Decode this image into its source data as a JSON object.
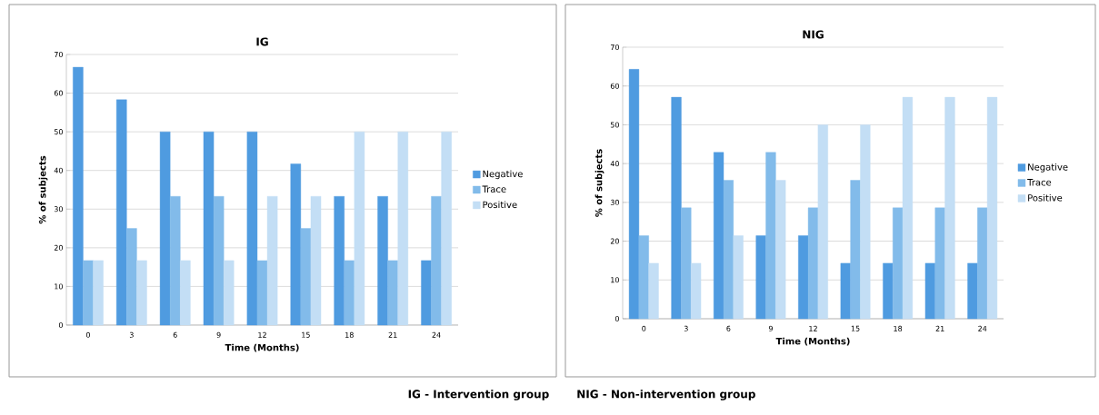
{
  "chart_data": [
    {
      "type": "bar",
      "title": "IG",
      "xlabel": "Time (Months)",
      "ylabel": "% of subjects",
      "categories": [
        "0",
        "3",
        "6",
        "9",
        "12",
        "15",
        "18",
        "21",
        "24"
      ],
      "series": [
        {
          "name": "Negative",
          "color": "#4f9be0",
          "values": [
            66.7,
            58.3,
            50,
            50,
            50,
            41.7,
            33.3,
            33.3,
            16.7
          ]
        },
        {
          "name": "Trace",
          "color": "#82bbea",
          "values": [
            16.7,
            25,
            33.3,
            33.3,
            16.7,
            25,
            16.7,
            16.7,
            33.3
          ]
        },
        {
          "name": "Positive",
          "color": "#c3def5",
          "values": [
            16.7,
            16.7,
            16.7,
            16.7,
            33.3,
            33.3,
            50,
            50,
            50
          ]
        }
      ],
      "ylim": [
        0,
        70
      ],
      "yticks": [
        0,
        10,
        20,
        30,
        40,
        50,
        60,
        70
      ],
      "grid": "y",
      "legend": "right",
      "annotations": [
        "IG - Intervention group",
        "NIG - Non-intervention group"
      ]
    },
    {
      "type": "bar",
      "title": "NIG",
      "xlabel": "Time (Months)",
      "ylabel": "% of subjects",
      "categories": [
        "0",
        "3",
        "6",
        "9",
        "12",
        "15",
        "18",
        "21",
        "24"
      ],
      "series": [
        {
          "name": "Negative",
          "color": "#4f9be0",
          "values": [
            64.3,
            57.1,
            42.9,
            21.4,
            21.4,
            14.3,
            14.3,
            14.3,
            14.3
          ]
        },
        {
          "name": "Trace",
          "color": "#82bbea",
          "values": [
            21.4,
            28.6,
            35.7,
            42.9,
            28.6,
            35.7,
            28.6,
            28.6,
            28.6
          ]
        },
        {
          "name": "Positive",
          "color": "#c3def5",
          "values": [
            14.3,
            14.3,
            21.4,
            35.7,
            50,
            50,
            57.1,
            57.1,
            57.1
          ]
        }
      ],
      "ylim": [
        0,
        70
      ],
      "yticks": [
        0,
        10,
        20,
        30,
        40,
        50,
        60,
        70
      ],
      "grid": "y",
      "legend": "right"
    }
  ]
}
